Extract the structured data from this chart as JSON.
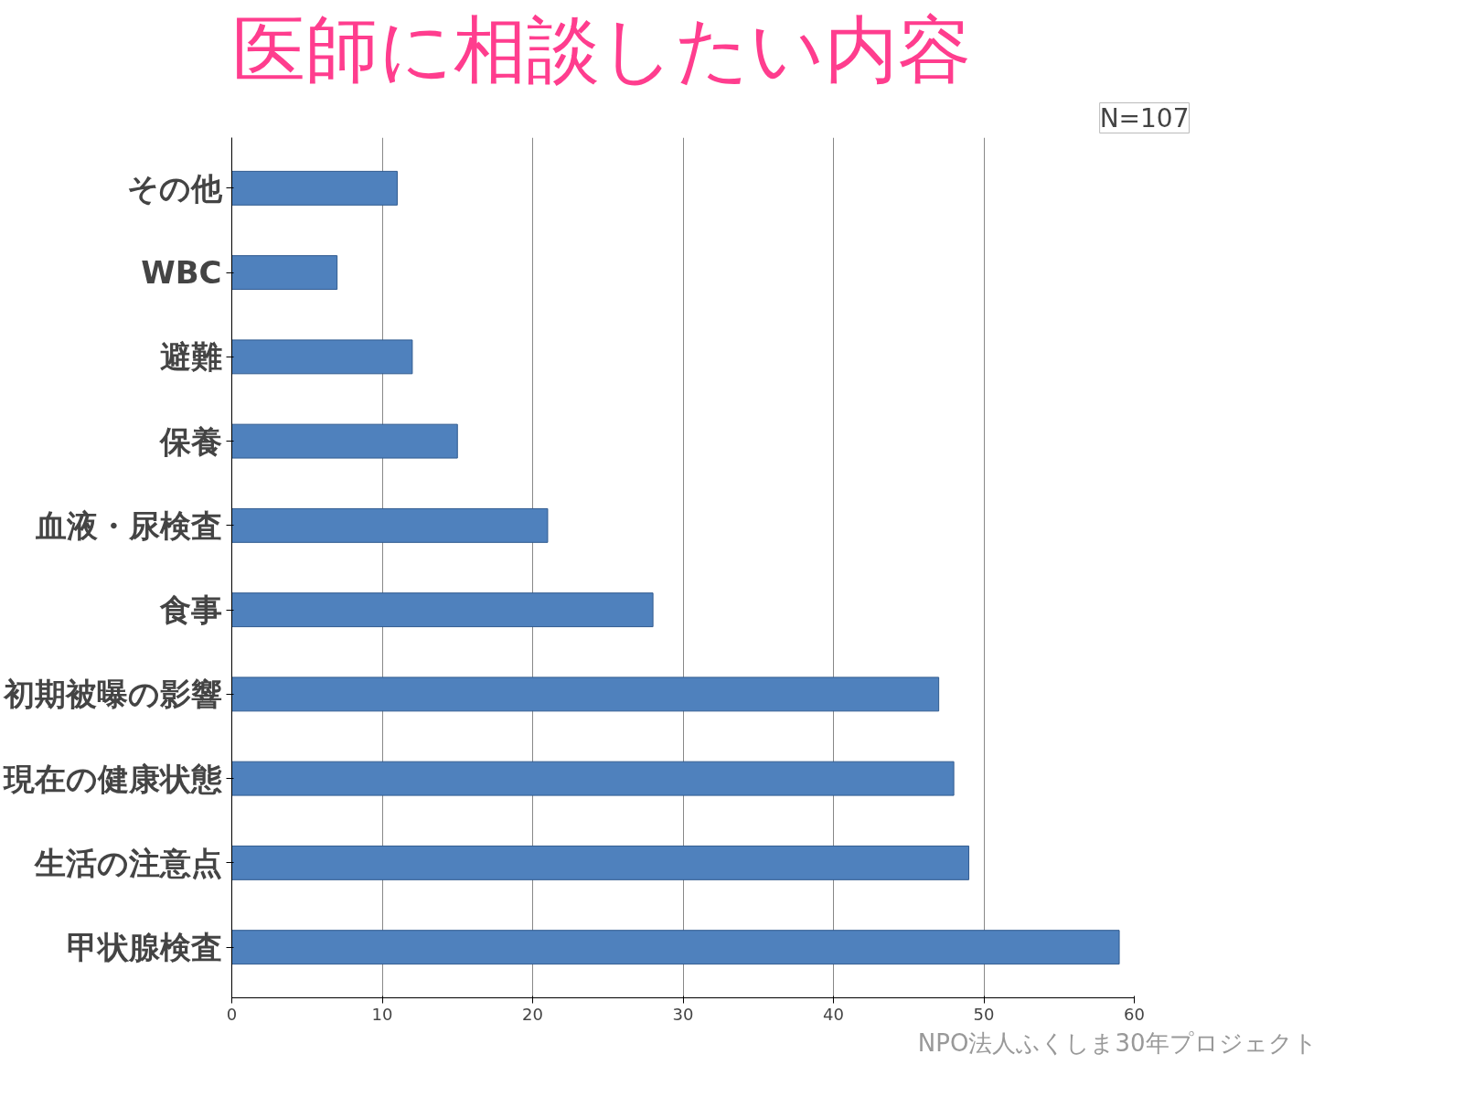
{
  "chart_data": {
    "type": "bar",
    "orientation": "horizontal",
    "title": "医師に相談したい内容",
    "categories": [
      "その他",
      "WBC",
      "避難",
      "保養",
      "血液・尿検査",
      "食事",
      "初期被曝の影響",
      "現在の健康状態",
      "生活の注意点",
      "甲状腺検査"
    ],
    "values": [
      11,
      7,
      12,
      15,
      21,
      28,
      47,
      48,
      49,
      59
    ],
    "color": "#4f81bd",
    "xlim": [
      0,
      60
    ],
    "xticks": [
      0,
      10,
      20,
      30,
      40,
      50,
      60
    ],
    "grid": "x",
    "annotations": [
      "N=107",
      "NPO法人ふくしま30年プロジェクト"
    ]
  }
}
